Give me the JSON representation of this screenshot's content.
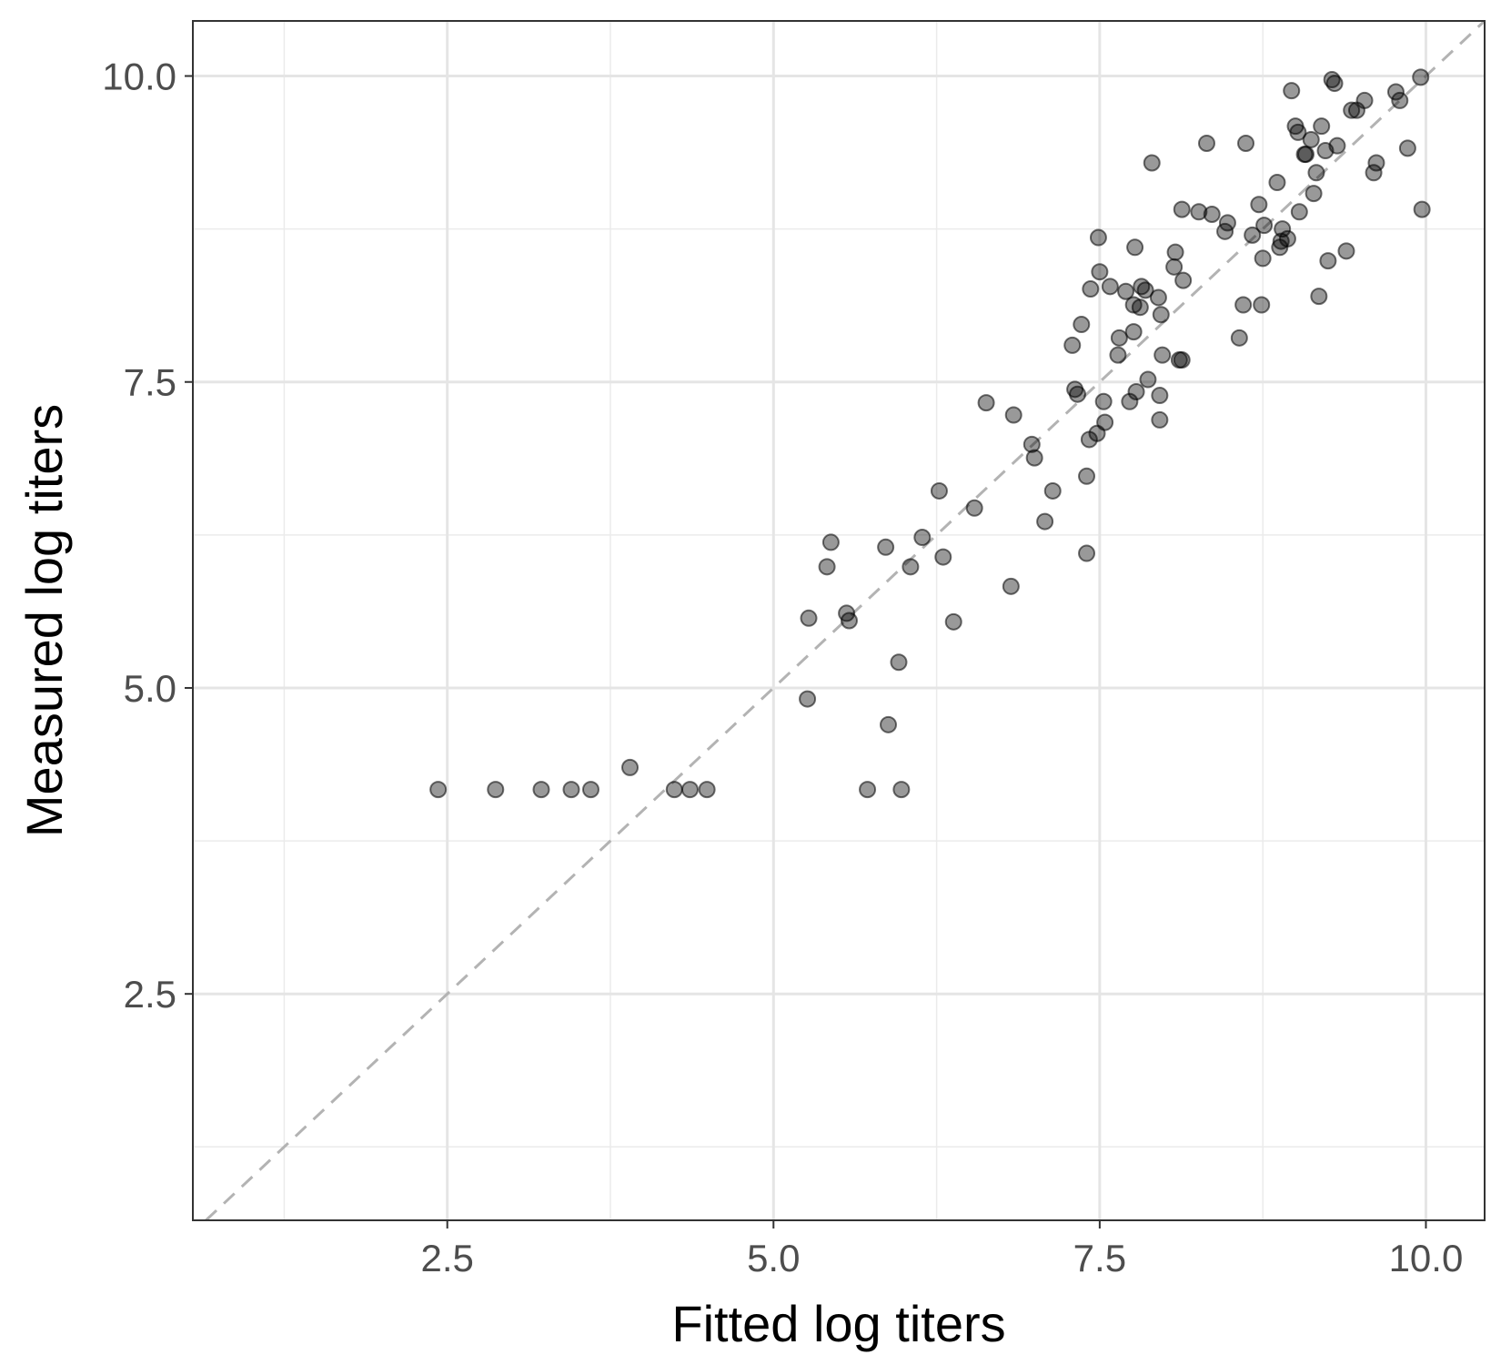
{
  "chart_data": {
    "type": "scatter",
    "title": "",
    "xlabel": "Fitted log titers",
    "ylabel": "Measured log titers",
    "xlim": [
      0.55,
      10.45
    ],
    "ylim": [
      0.65,
      10.45
    ],
    "x_ticks": [
      "2.5",
      "5.0",
      "7.5",
      "10.0"
    ],
    "y_ticks": [
      "2.5",
      "5.0",
      "7.5",
      "10.0"
    ],
    "x_tick_values": [
      2.5,
      5.0,
      7.5,
      10.0
    ],
    "y_tick_values": [
      2.5,
      5.0,
      7.5,
      10.0
    ],
    "x_minor_values": [
      1.25,
      3.75,
      6.25,
      8.75
    ],
    "y_minor_values": [
      1.25,
      3.75,
      6.25,
      8.75
    ],
    "grid": true,
    "reference_line": {
      "type": "y = x",
      "style": "dashed",
      "color": "#b3b3b3"
    },
    "point_color": "#000000",
    "point_opacity": 0.4,
    "points": [
      [
        2.43,
        4.17
      ],
      [
        2.87,
        4.17
      ],
      [
        3.22,
        4.17
      ],
      [
        3.45,
        4.17
      ],
      [
        3.6,
        4.17
      ],
      [
        3.9,
        4.35
      ],
      [
        4.24,
        4.17
      ],
      [
        4.36,
        4.17
      ],
      [
        4.49,
        4.17
      ],
      [
        5.26,
        4.91
      ],
      [
        5.27,
        5.57
      ],
      [
        5.41,
        5.99
      ],
      [
        5.44,
        6.19
      ],
      [
        5.56,
        5.61
      ],
      [
        5.58,
        5.55
      ],
      [
        5.72,
        4.17
      ],
      [
        5.86,
        6.15
      ],
      [
        5.88,
        4.7
      ],
      [
        5.96,
        5.21
      ],
      [
        5.98,
        4.17
      ],
      [
        6.05,
        5.99
      ],
      [
        6.14,
        6.23
      ],
      [
        6.27,
        6.61
      ],
      [
        6.3,
        6.07
      ],
      [
        6.38,
        5.54
      ],
      [
        6.54,
        6.47
      ],
      [
        6.63,
        7.33
      ],
      [
        6.82,
        5.83
      ],
      [
        6.84,
        7.23
      ],
      [
        6.98,
        6.99
      ],
      [
        7.0,
        6.88
      ],
      [
        7.08,
        6.36
      ],
      [
        7.14,
        6.61
      ],
      [
        7.29,
        7.8
      ],
      [
        7.31,
        7.44
      ],
      [
        7.33,
        7.4
      ],
      [
        7.36,
        7.97
      ],
      [
        7.4,
        6.1
      ],
      [
        7.4,
        6.73
      ],
      [
        7.42,
        7.03
      ],
      [
        7.43,
        8.26
      ],
      [
        7.48,
        7.08
      ],
      [
        7.49,
        8.68
      ],
      [
        7.5,
        8.4
      ],
      [
        7.53,
        7.34
      ],
      [
        7.54,
        7.17
      ],
      [
        7.58,
        8.28
      ],
      [
        7.64,
        7.72
      ],
      [
        7.65,
        7.86
      ],
      [
        7.7,
        8.24
      ],
      [
        7.73,
        7.34
      ],
      [
        7.76,
        7.91
      ],
      [
        7.76,
        8.13
      ],
      [
        7.77,
        8.6
      ],
      [
        7.78,
        7.42
      ],
      [
        7.81,
        8.11
      ],
      [
        7.82,
        8.28
      ],
      [
        7.85,
        8.25
      ],
      [
        7.87,
        7.52
      ],
      [
        7.9,
        9.29
      ],
      [
        7.95,
        8.19
      ],
      [
        7.96,
        7.39
      ],
      [
        7.96,
        7.19
      ],
      [
        7.97,
        8.05
      ],
      [
        7.98,
        7.72
      ],
      [
        8.07,
        8.44
      ],
      [
        8.08,
        8.56
      ],
      [
        8.11,
        7.68
      ],
      [
        8.13,
        7.68
      ],
      [
        8.13,
        8.91
      ],
      [
        8.14,
        8.33
      ],
      [
        8.26,
        8.89
      ],
      [
        8.32,
        9.45
      ],
      [
        8.36,
        8.87
      ],
      [
        8.46,
        8.73
      ],
      [
        8.48,
        8.8
      ],
      [
        8.57,
        7.86
      ],
      [
        8.6,
        8.13
      ],
      [
        8.62,
        9.45
      ],
      [
        8.67,
        8.7
      ],
      [
        8.72,
        8.95
      ],
      [
        8.74,
        8.13
      ],
      [
        8.75,
        8.51
      ],
      [
        8.76,
        8.78
      ],
      [
        8.86,
        9.13
      ],
      [
        8.88,
        8.6
      ],
      [
        8.89,
        8.65
      ],
      [
        8.9,
        8.75
      ],
      [
        8.94,
        8.67
      ],
      [
        8.97,
        9.88
      ],
      [
        9.0,
        9.59
      ],
      [
        9.02,
        9.54
      ],
      [
        9.03,
        8.89
      ],
      [
        9.07,
        9.36
      ],
      [
        9.08,
        9.36
      ],
      [
        9.12,
        9.48
      ],
      [
        9.14,
        9.04
      ],
      [
        9.16,
        9.21
      ],
      [
        9.18,
        8.2
      ],
      [
        9.2,
        9.59
      ],
      [
        9.23,
        9.39
      ],
      [
        9.25,
        8.49
      ],
      [
        9.28,
        9.97
      ],
      [
        9.3,
        9.94
      ],
      [
        9.32,
        9.43
      ],
      [
        9.39,
        8.57
      ],
      [
        9.43,
        9.72
      ],
      [
        9.47,
        9.72
      ],
      [
        9.53,
        9.8
      ],
      [
        9.6,
        9.21
      ],
      [
        9.62,
        9.29
      ],
      [
        9.77,
        9.87
      ],
      [
        9.8,
        9.8
      ],
      [
        9.86,
        9.41
      ],
      [
        9.96,
        9.99
      ],
      [
        9.97,
        8.91
      ]
    ]
  }
}
